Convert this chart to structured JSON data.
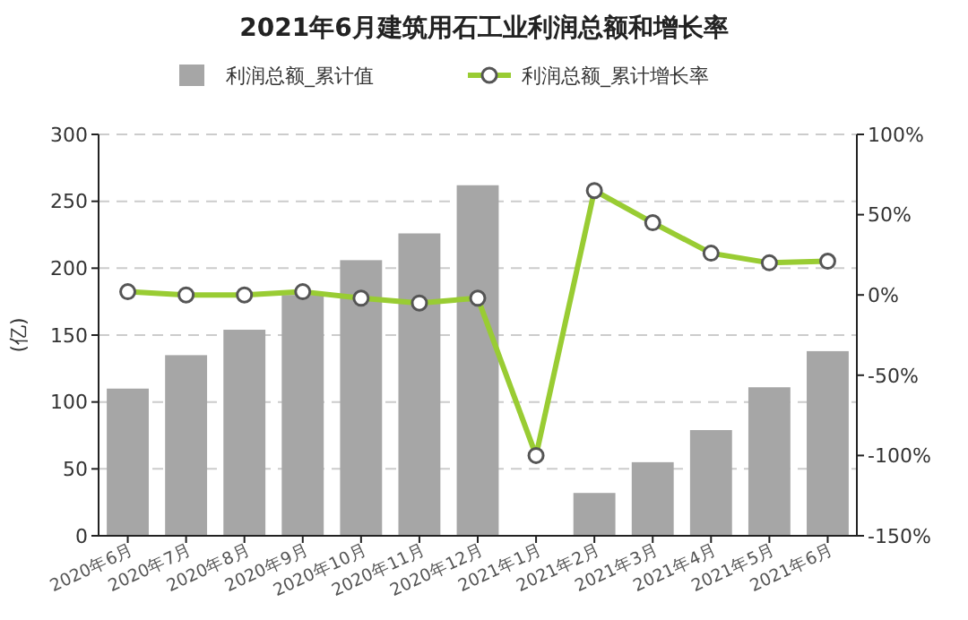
{
  "chart_data": {
    "type": "bar",
    "title": "2021年6月建筑用石工业利润总额和增长率",
    "ylabel": "(亿)",
    "categories": [
      "2020年6月",
      "2020年7月",
      "2020年8月",
      "2020年9月",
      "2020年10月",
      "2020年11月",
      "2020年12月",
      "2021年1月",
      "2021年2月",
      "2021年3月",
      "2021年4月",
      "2021年5月",
      "2021年6月"
    ],
    "series": [
      {
        "name": "利润总额_累计值",
        "color": "#a6a6a6",
        "values": [
          110,
          135,
          154,
          180,
          206,
          226,
          262,
          null,
          32,
          55,
          79,
          111,
          138
        ]
      },
      {
        "name": "利润总额_累计增长率",
        "type": "line",
        "axis": "y2",
        "color": "#99cc33",
        "marker": "circle",
        "values": [
          2,
          0,
          0,
          2,
          -2,
          -5,
          -2,
          -100,
          65,
          45,
          26,
          20,
          21
        ]
      }
    ],
    "ylim": [
      0,
      300
    ],
    "yticks": [
      0,
      50,
      100,
      150,
      200,
      250,
      300
    ],
    "y2lim": [
      -150,
      100
    ],
    "y2ticks": [
      {
        "value": -150,
        "label": "-150%"
      },
      {
        "value": -100,
        "label": "-100%"
      },
      {
        "value": -50,
        "label": "-50%"
      },
      {
        "value": 0,
        "label": "0%"
      },
      {
        "value": 50,
        "label": "50%"
      },
      {
        "value": 100,
        "label": "100%"
      }
    ],
    "grid": "y",
    "legend": "top"
  }
}
